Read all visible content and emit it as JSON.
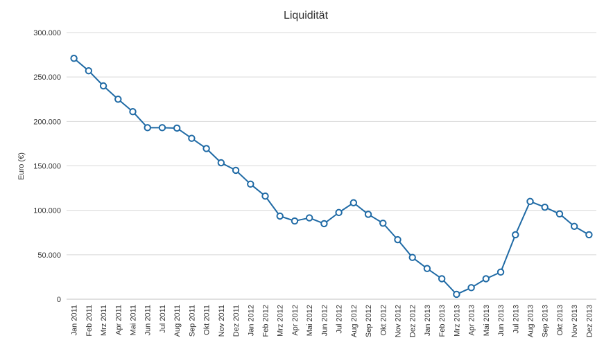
{
  "chart_data": {
    "type": "line",
    "title": "Liquidität",
    "xlabel": "",
    "ylabel": "Euro (€)",
    "ylim": [
      0,
      300000
    ],
    "yticks": [
      0,
      50000,
      100000,
      150000,
      200000,
      250000,
      300000
    ],
    "ytick_labels": [
      "0",
      "50.000",
      "100.000",
      "150.000",
      "200.000",
      "250.000",
      "300.000"
    ],
    "grid": true,
    "legend": "none",
    "colors": {
      "line": "#1f6aa5",
      "marker_fill": "#ffffff"
    },
    "categories": [
      "Jan 2011",
      "Feb 2011",
      "Mrz 2011",
      "Apr 2011",
      "Mai 2011",
      "Jun 2011",
      "Jul 2011",
      "Aug 2011",
      "Sep 2011",
      "Okt 2011",
      "Nov 2011",
      "Dez 2011",
      "Jan 2012",
      "Feb 2012",
      "Mrz 2012",
      "Apr 2012",
      "Mai 2012",
      "Jun 2012",
      "Jul 2012",
      "Aug 2012",
      "Sep 2012",
      "Okt 2012",
      "Nov 2012",
      "Dez 2012",
      "Jan 2013",
      "Feb 2013",
      "Mrz 2013",
      "Apr 2013",
      "Mai 2013",
      "Jun 2013",
      "Jul 2013",
      "Aug 2013",
      "Sep 2013",
      "Okt 2013",
      "Nov 2013",
      "Dez 2013"
    ],
    "series": [
      {
        "values": [
          271000,
          257000,
          240000,
          225000,
          211000,
          193000,
          193000,
          192500,
          181000,
          169500,
          153500,
          145000,
          129500,
          116000,
          93500,
          88000,
          91500,
          85000,
          97500,
          108500,
          95500,
          85500,
          67000,
          47000,
          34500,
          23000,
          5500,
          13000,
          23000,
          30500,
          72500,
          110000,
          103500,
          96000,
          82000,
          72500
        ]
      }
    ]
  }
}
